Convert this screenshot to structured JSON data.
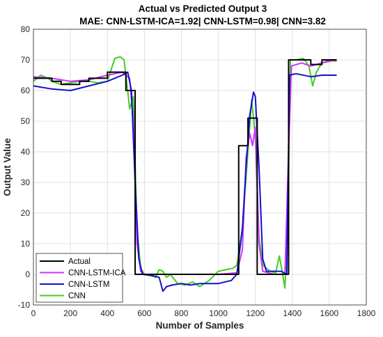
{
  "chart_data": {
    "type": "line",
    "title": "Actual vs Predicted Output 3",
    "subtitle": "MAE: CNN-LSTM-ICA=1.92| CNN-LSTM=0.98| CNN=3.82",
    "xlabel": "Number of Samples",
    "ylabel": "Output Value",
    "xlim": [
      0,
      1800
    ],
    "ylim": [
      -10,
      80
    ],
    "xticks": [
      "0",
      "200",
      "400",
      "600",
      "800",
      "1000",
      "1200",
      "1400",
      "1600",
      "1800"
    ],
    "yticks": [
      "-10",
      "0",
      "10",
      "20",
      "30",
      "40",
      "50",
      "60",
      "70",
      "80"
    ],
    "grid": true,
    "legend_position": "bottom-left",
    "series": [
      {
        "name": "Actual",
        "color": "#000000",
        "points": [
          [
            0,
            64
          ],
          [
            100,
            64
          ],
          [
            100,
            63
          ],
          [
            150,
            63
          ],
          [
            150,
            62
          ],
          [
            250,
            62
          ],
          [
            250,
            63
          ],
          [
            300,
            63
          ],
          [
            300,
            64
          ],
          [
            400,
            64
          ],
          [
            400,
            66
          ],
          [
            500,
            66
          ],
          [
            500,
            60
          ],
          [
            550,
            60
          ],
          [
            550,
            0
          ],
          [
            1110,
            0
          ],
          [
            1110,
            42
          ],
          [
            1160,
            42
          ],
          [
            1160,
            51
          ],
          [
            1210,
            51
          ],
          [
            1210,
            0
          ],
          [
            1380,
            0
          ],
          [
            1380,
            70
          ],
          [
            1500,
            70
          ],
          [
            1500,
            68.5
          ],
          [
            1560,
            68.5
          ],
          [
            1560,
            70
          ],
          [
            1640,
            70
          ]
        ]
      },
      {
        "name": "CNN-LSTM-ICA",
        "color": "#cc33ff",
        "points": [
          [
            0,
            64.5
          ],
          [
            100,
            64
          ],
          [
            200,
            63
          ],
          [
            300,
            63.5
          ],
          [
            400,
            65
          ],
          [
            480,
            66
          ],
          [
            520,
            64
          ],
          [
            540,
            50
          ],
          [
            560,
            10
          ],
          [
            580,
            1
          ],
          [
            600,
            0
          ],
          [
            800,
            0
          ],
          [
            1000,
            0
          ],
          [
            1100,
            0.5
          ],
          [
            1130,
            8
          ],
          [
            1150,
            38
          ],
          [
            1170,
            46
          ],
          [
            1185,
            42
          ],
          [
            1200,
            48
          ],
          [
            1220,
            10
          ],
          [
            1240,
            1
          ],
          [
            1300,
            0
          ],
          [
            1360,
            0
          ],
          [
            1380,
            40
          ],
          [
            1395,
            68
          ],
          [
            1450,
            69
          ],
          [
            1500,
            68
          ],
          [
            1560,
            69
          ],
          [
            1640,
            70
          ]
        ]
      },
      {
        "name": "CNN-LSTM",
        "color": "#1111cc",
        "points": [
          [
            0,
            61.5
          ],
          [
            100,
            60.5
          ],
          [
            200,
            60
          ],
          [
            300,
            61.5
          ],
          [
            400,
            63
          ],
          [
            480,
            65
          ],
          [
            510,
            66
          ],
          [
            530,
            60
          ],
          [
            550,
            30
          ],
          [
            570,
            5
          ],
          [
            590,
            0
          ],
          [
            650,
            -0.5
          ],
          [
            680,
            -1
          ],
          [
            700,
            -5.5
          ],
          [
            720,
            -4
          ],
          [
            750,
            -3.5
          ],
          [
            800,
            -3
          ],
          [
            850,
            -3.5
          ],
          [
            900,
            -3
          ],
          [
            1000,
            -3
          ],
          [
            1070,
            -2
          ],
          [
            1100,
            0
          ],
          [
            1130,
            15
          ],
          [
            1150,
            35
          ],
          [
            1170,
            52
          ],
          [
            1190,
            59.5
          ],
          [
            1200,
            58
          ],
          [
            1220,
            35
          ],
          [
            1240,
            5
          ],
          [
            1260,
            1
          ],
          [
            1340,
            1
          ],
          [
            1370,
            0
          ],
          [
            1385,
            65
          ],
          [
            1420,
            65.5
          ],
          [
            1500,
            64.5
          ],
          [
            1560,
            65
          ],
          [
            1640,
            65
          ]
        ]
      },
      {
        "name": "CNN",
        "color": "#44cc22",
        "points": [
          [
            0,
            63
          ],
          [
            40,
            65
          ],
          [
            80,
            64
          ],
          [
            100,
            63
          ],
          [
            150,
            62
          ],
          [
            200,
            62.5
          ],
          [
            250,
            63
          ],
          [
            300,
            63
          ],
          [
            350,
            62.5
          ],
          [
            400,
            63
          ],
          [
            440,
            70.5
          ],
          [
            470,
            71
          ],
          [
            490,
            70
          ],
          [
            510,
            60
          ],
          [
            520,
            54
          ],
          [
            540,
            58
          ],
          [
            560,
            15
          ],
          [
            580,
            2
          ],
          [
            600,
            0
          ],
          [
            640,
            -0.5
          ],
          [
            660,
            -1
          ],
          [
            680,
            1.5
          ],
          [
            700,
            1
          ],
          [
            720,
            -1
          ],
          [
            740,
            0
          ],
          [
            780,
            -3
          ],
          [
            820,
            -3.5
          ],
          [
            860,
            -2.5
          ],
          [
            900,
            -4
          ],
          [
            950,
            -2
          ],
          [
            1000,
            1
          ],
          [
            1040,
            1.5
          ],
          [
            1080,
            2
          ],
          [
            1100,
            3
          ],
          [
            1130,
            15
          ],
          [
            1160,
            40
          ],
          [
            1180,
            57
          ],
          [
            1200,
            45
          ],
          [
            1220,
            12
          ],
          [
            1240,
            3
          ],
          [
            1280,
            1
          ],
          [
            1310,
            0.5
          ],
          [
            1330,
            6
          ],
          [
            1345,
            1
          ],
          [
            1360,
            -4.5
          ],
          [
            1375,
            15
          ],
          [
            1390,
            70
          ],
          [
            1420,
            70
          ],
          [
            1460,
            70.5
          ],
          [
            1490,
            68
          ],
          [
            1510,
            61.5
          ],
          [
            1530,
            66
          ],
          [
            1560,
            69
          ],
          [
            1600,
            70
          ],
          [
            1640,
            69.5
          ]
        ]
      }
    ]
  }
}
